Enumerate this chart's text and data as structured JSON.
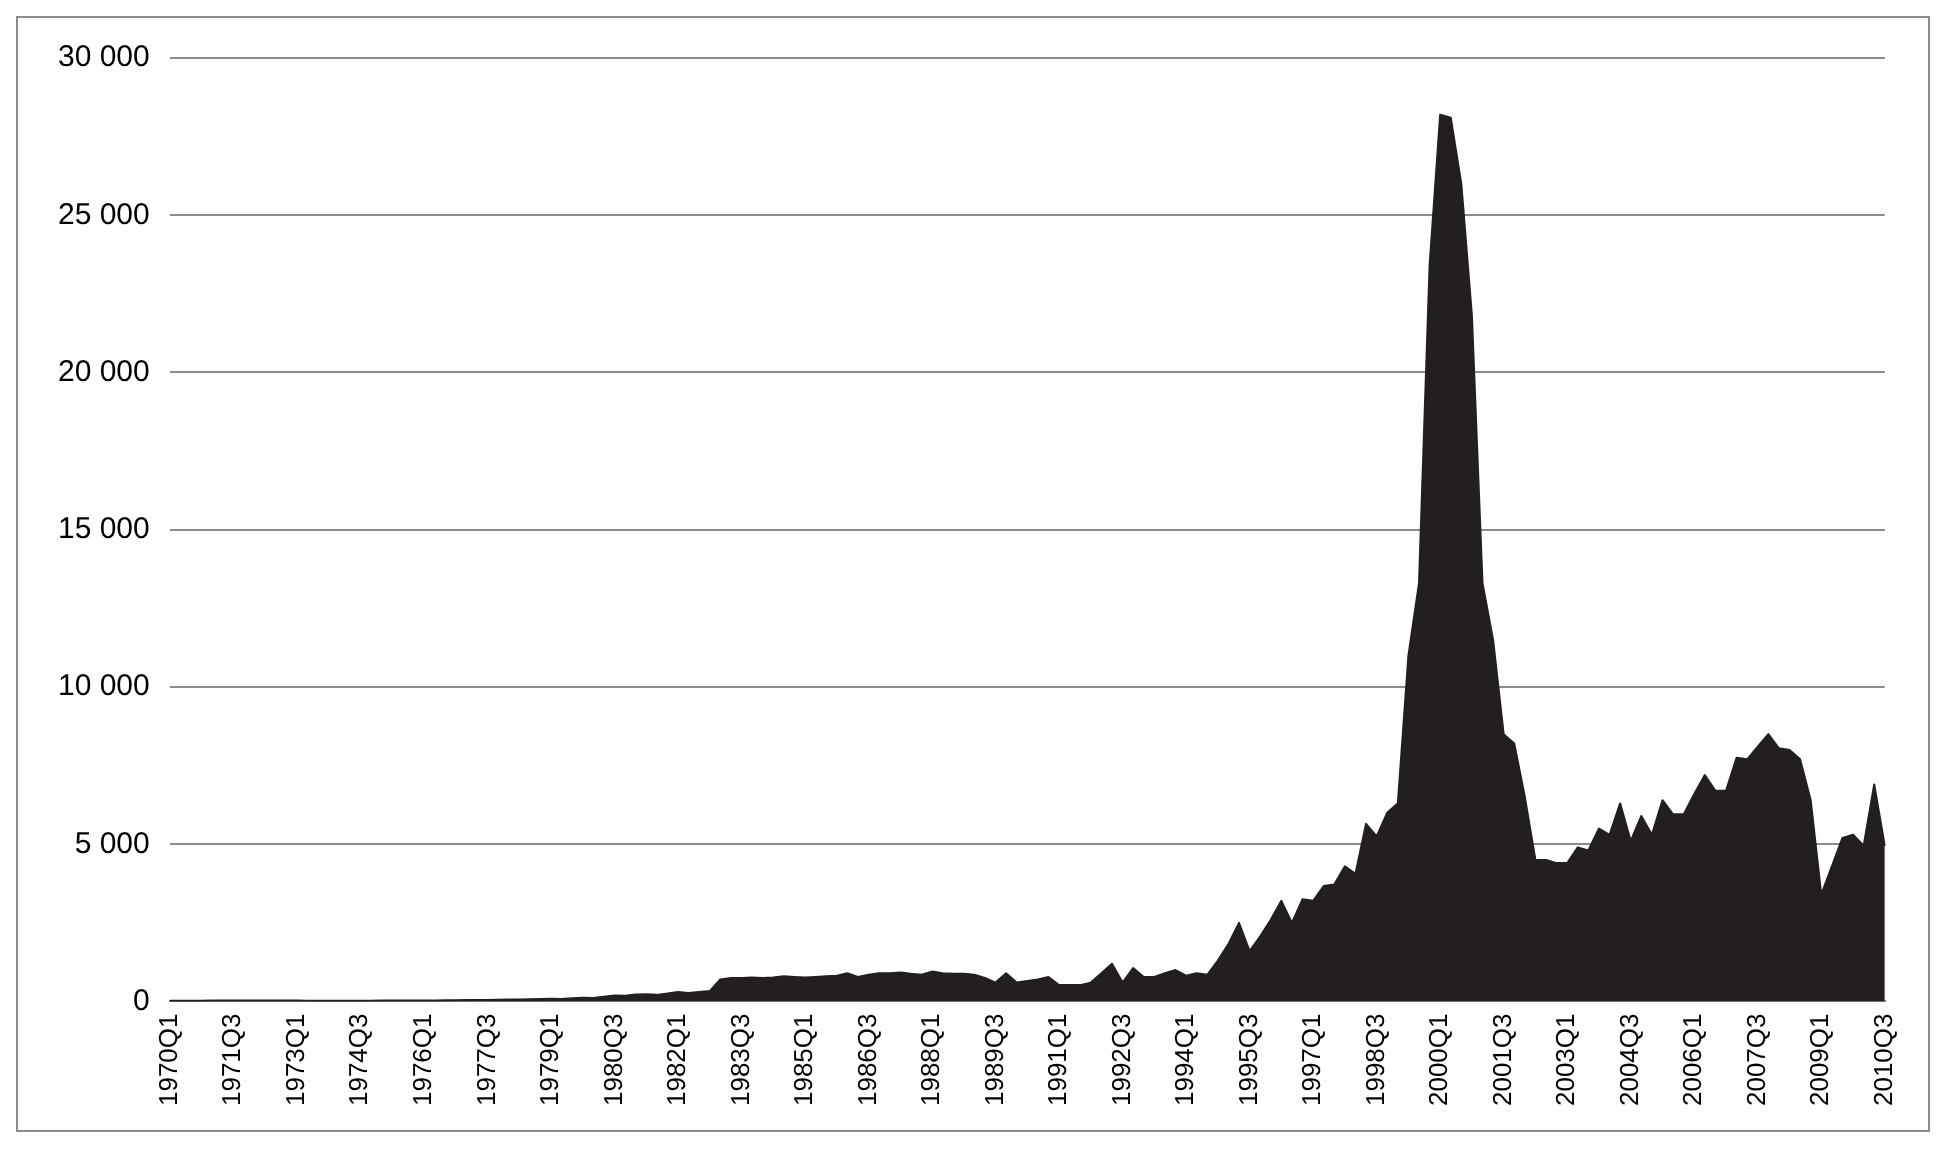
{
  "chart_data": {
    "type": "area",
    "categories": [
      "1970Q1",
      null,
      null,
      null,
      null,
      null,
      "1971Q3",
      null,
      null,
      null,
      null,
      null,
      "1973Q1",
      null,
      null,
      null,
      null,
      null,
      "1974Q3",
      null,
      null,
      null,
      null,
      null,
      "1976Q1",
      null,
      null,
      null,
      null,
      null,
      "1977Q3",
      null,
      null,
      null,
      null,
      null,
      "1979Q1",
      null,
      null,
      null,
      null,
      null,
      "1980Q3",
      null,
      null,
      null,
      null,
      null,
      "1982Q1",
      null,
      null,
      null,
      null,
      null,
      "1983Q3",
      null,
      null,
      null,
      null,
      null,
      "1985Q1",
      null,
      null,
      null,
      null,
      null,
      "1986Q3",
      null,
      null,
      null,
      null,
      null,
      "1988Q1",
      null,
      null,
      null,
      null,
      null,
      "1989Q3",
      null,
      null,
      null,
      null,
      null,
      "1991Q1",
      null,
      null,
      null,
      null,
      null,
      "1992Q3",
      null,
      null,
      null,
      null,
      null,
      "1994Q1",
      null,
      null,
      null,
      null,
      null,
      "1995Q3",
      null,
      null,
      null,
      null,
      null,
      "1997Q1",
      null,
      null,
      null,
      null,
      null,
      "1998Q3",
      null,
      null,
      null,
      null,
      null,
      "2000Q1",
      null,
      null,
      null,
      null,
      null,
      "2001Q3",
      null,
      null,
      null,
      null,
      null,
      "2003Q1",
      null,
      null,
      null,
      null,
      null,
      "2004Q3",
      null,
      null,
      null,
      null,
      null,
      "2006Q1",
      null,
      null,
      null,
      null,
      null,
      "2007Q3",
      null,
      null,
      null,
      null,
      null,
      "2009Q1",
      null,
      null,
      null,
      null,
      null,
      "2010Q3"
    ],
    "values": [
      20,
      22,
      25,
      25,
      28,
      30,
      30,
      32,
      35,
      35,
      30,
      30,
      28,
      25,
      25,
      25,
      22,
      22,
      25,
      25,
      28,
      30,
      30,
      32,
      35,
      35,
      40,
      40,
      45,
      45,
      50,
      55,
      60,
      60,
      70,
      80,
      90,
      80,
      100,
      120,
      110,
      150,
      190,
      180,
      220,
      230,
      210,
      250,
      300,
      270,
      300,
      330,
      700,
      750,
      750,
      760,
      750,
      760,
      800,
      780,
      760,
      780,
      800,
      820,
      900,
      780,
      850,
      900,
      900,
      920,
      880,
      850,
      950,
      900,
      880,
      880,
      850,
      750,
      600,
      900,
      600,
      650,
      700,
      780,
      520,
      520,
      520,
      600,
      900,
      1200,
      600,
      1060,
      780,
      780,
      900,
      1000,
      820,
      900,
      850,
      1300,
      1830,
      2500,
      1600,
      2070,
      2600,
      3200,
      2500,
      3250,
      3200,
      3670,
      3720,
      4300,
      4060,
      5650,
      5250,
      6000,
      6300,
      11000,
      13300,
      23400,
      28200,
      28100,
      26000,
      21800,
      13300,
      11500,
      8500,
      8200,
      6500,
      4500,
      4500,
      4400,
      4400,
      4900,
      4800,
      5500,
      5300,
      6300,
      5100,
      5900,
      5300,
      6400,
      5950,
      5950,
      6600,
      7200,
      6700,
      6700,
      7750,
      7700,
      8100,
      8500,
      8050,
      8000,
      7700,
      6400,
      3400,
      4300,
      5200,
      5300,
      4950,
      6900,
      4950
    ],
    "color": "#231f20",
    "ylim": [
      0,
      30000
    ],
    "yticks": [
      0,
      {
        "value": 5000,
        "label": "5 000"
      },
      {
        "value": 10000,
        "label": "10 000"
      },
      {
        "value": 15000,
        "label": "15 000"
      },
      {
        "value": 20000,
        "label": "20 000"
      },
      {
        "value": 25000,
        "label": "25 000"
      },
      {
        "value": 30000,
        "label": "30 000"
      }
    ],
    "grid": "y",
    "legend": false
  }
}
